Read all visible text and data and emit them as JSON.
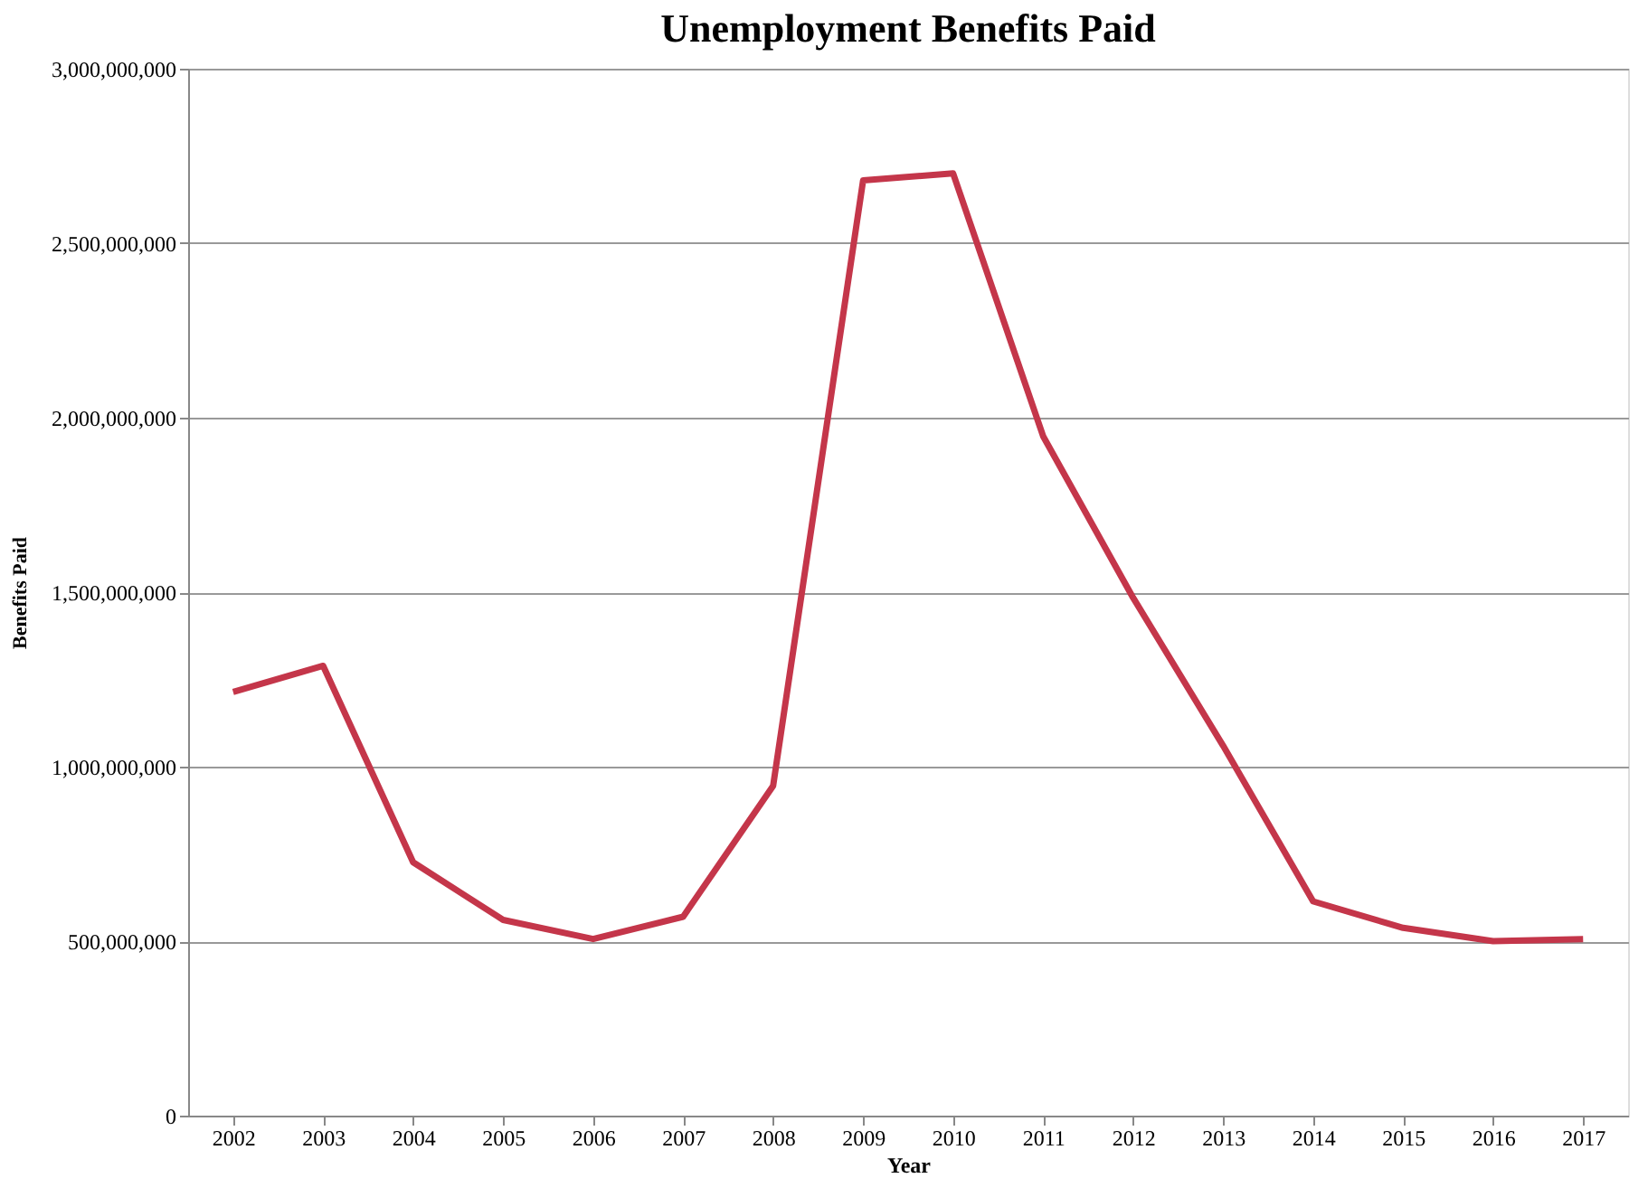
{
  "chart_data": {
    "type": "line",
    "title": "Unemployment Benefits Paid",
    "xlabel": "Year",
    "ylabel": "Benefits Paid",
    "categories": [
      "2002",
      "2003",
      "2004",
      "2005",
      "2006",
      "2007",
      "2008",
      "2009",
      "2010",
      "2011",
      "2012",
      "2013",
      "2014",
      "2015",
      "2016",
      "2017"
    ],
    "series": [
      {
        "color": "#c4364a",
        "values": [
          1214000000,
          1289000000,
          726000000,
          561000000,
          506000000,
          570000000,
          945000000,
          2680000000,
          2700000000,
          1947000000,
          1484000000,
          1060000000,
          614000000,
          538000000,
          500000000,
          506000000
        ]
      }
    ],
    "ylim": [
      0,
      3000000000
    ],
    "yticks": [
      0,
      {
        "value": 500000000,
        "label": "500,000,000"
      },
      {
        "value": 1000000000,
        "label": "1,000,000,000"
      },
      {
        "value": 1500000000,
        "label": "1,500,000,000"
      },
      {
        "value": 2000000000,
        "label": "2,000,000,000"
      },
      {
        "value": 2500000000,
        "label": "2,500,000,000"
      },
      {
        "value": 3000000000,
        "label": "3,000,000,000"
      }
    ],
    "grid": "y",
    "marker": "none",
    "line_style": "solid"
  }
}
